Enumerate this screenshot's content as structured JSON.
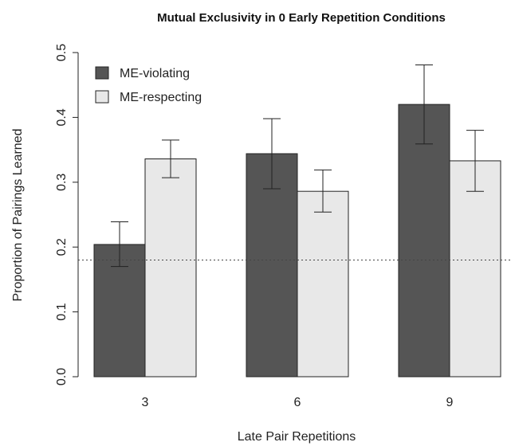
{
  "chart_data": {
    "type": "bar",
    "title": "Mutual Exclusivity in 0 Early Repetition Conditions",
    "xlabel": "Late Pair Repetitions",
    "ylabel": "Proportion of Pairings Learned",
    "categories": [
      "3",
      "6",
      "9"
    ],
    "ylim": [
      0,
      0.5
    ],
    "yticks": [
      "0.0",
      "0.1",
      "0.2",
      "0.3",
      "0.4",
      "0.5"
    ],
    "reference_line": 0.18,
    "legend_position": "top-left",
    "series": [
      {
        "name": "ME-violating",
        "color": "#555555",
        "values": [
          0.204,
          0.344,
          0.42
        ],
        "err_low": [
          0.17,
          0.29,
          0.359
        ],
        "err_high": [
          0.239,
          0.398,
          0.481
        ]
      },
      {
        "name": "ME-respecting",
        "color": "#e8e8e8",
        "values": [
          0.336,
          0.286,
          0.333
        ],
        "err_low": [
          0.307,
          0.254,
          0.286
        ],
        "err_high": [
          0.365,
          0.319,
          0.38
        ]
      }
    ]
  }
}
